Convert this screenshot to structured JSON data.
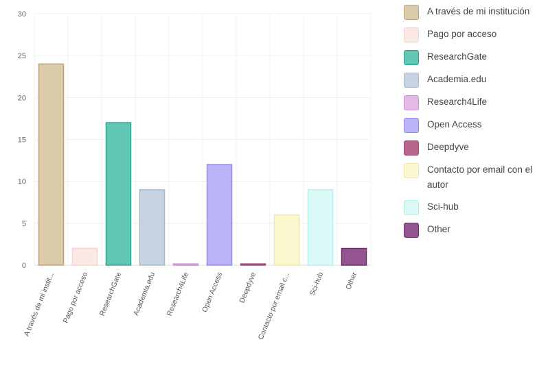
{
  "chart_data": {
    "type": "bar",
    "title": "",
    "xlabel": "",
    "ylabel": "",
    "ylim": [
      0,
      30
    ],
    "yticks": [
      0,
      5,
      10,
      15,
      20,
      25,
      30
    ],
    "grid": true,
    "legend_position": "right",
    "categories": [
      "A través de mi instit...",
      "Pago por acceso",
      "ResearchGate",
      "Academia.edu",
      "Research4Life",
      "Open Access",
      "Deepdyve",
      "Contacto por email c...",
      "Sci-hub",
      "Other"
    ],
    "values": [
      24,
      2,
      17,
      9,
      0.15,
      12,
      0.15,
      6,
      9,
      2
    ],
    "legend": [
      "A través de mi institución",
      "Pago por acceso",
      "ResearchGate",
      "Academia.edu",
      "Research4Life",
      "Open Access",
      "Deepdyve",
      "Contacto por email con el autor",
      "Sci-hub",
      "Other"
    ],
    "fill_colors": [
      "#dccbaa",
      "#fbe9e6",
      "#63c7b6",
      "#c6d3e2",
      "#e3b9e8",
      "#b8b4f7",
      "#b8678a",
      "#fbf8cf",
      "#daf9f7",
      "#955593"
    ],
    "stroke_colors": [
      "#bda27a",
      "#f5d3cc",
      "#2fa597",
      "#a8b8cb",
      "#cf8fd3",
      "#918cee",
      "#9a4871",
      "#eee9a4",
      "#b8eeea",
      "#6e2f6d"
    ]
  }
}
